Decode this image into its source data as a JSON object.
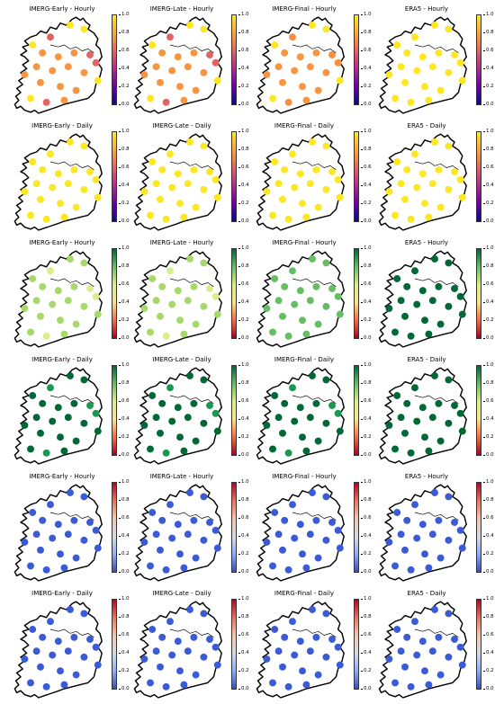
{
  "colors": {
    "outline": "#000000",
    "water": "#ffffff"
  },
  "colorbars": {
    "plasma": [
      "#fde725",
      "#fca636",
      "#e16462",
      "#b12a90",
      "#6a00a8",
      "#0d0887"
    ],
    "redyellowgreen": [
      "#006837",
      "#66bd63",
      "#d9ef8b",
      "#fee08b",
      "#f46d43",
      "#a50026"
    ],
    "coolwarm": [
      "#b40426",
      "#e7745b",
      "#f5c4ac",
      "#d5dbe5",
      "#8caff9",
      "#3b4cc0"
    ]
  },
  "colorbar_ticks": [
    "1.0",
    "0.8",
    "0.6",
    "0.4",
    "0.2",
    "0.0"
  ],
  "rows": [
    {
      "cmap": "plasma",
      "panels": [
        {
          "title": "IMERG-Early - Hourly",
          "dot_color": "#f89540",
          "accent_color": "#e16462",
          "yellow_edges": true
        },
        {
          "title": "IMERG-Late - Hourly",
          "dot_color": "#f89540",
          "accent_color": "#e16462",
          "yellow_edges": true
        },
        {
          "title": "IMERG-Final - Hourly",
          "dot_color": "#f89540",
          "accent_color": "#f68f44",
          "yellow_edges": true
        },
        {
          "title": "ERA5 - Hourly",
          "dot_color": "#fde725",
          "accent_color": "#fde725",
          "yellow_edges": false
        }
      ]
    },
    {
      "cmap": "plasma",
      "panels": [
        {
          "title": "IMERG-Early - Daily",
          "dot_color": "#fbe723",
          "accent_color": "#fbe723",
          "yellow_edges": false
        },
        {
          "title": "IMERG-Late - Daily",
          "dot_color": "#fbe723",
          "accent_color": "#fbe723",
          "yellow_edges": false
        },
        {
          "title": "IMERG-Final - Daily",
          "dot_color": "#fbe723",
          "accent_color": "#fbe723",
          "yellow_edges": false
        },
        {
          "title": "ERA5 - Daily",
          "dot_color": "#fde725",
          "accent_color": "#fde725",
          "yellow_edges": false
        }
      ]
    },
    {
      "cmap": "redyellowgreen",
      "panels": [
        {
          "title": "IMERG-Early - Hourly",
          "dot_color": "#a6d96a",
          "accent_color": "#d9ef8b",
          "yellow_edges": false
        },
        {
          "title": "IMERG-Late - Hourly",
          "dot_color": "#a6d96a",
          "accent_color": "#d9ef8b",
          "yellow_edges": false
        },
        {
          "title": "IMERG-Final - Hourly",
          "dot_color": "#66bd63",
          "accent_color": "#66bd63",
          "yellow_edges": false
        },
        {
          "title": "ERA5 - Hourly",
          "dot_color": "#006837",
          "accent_color": "#006837",
          "yellow_edges": false
        }
      ]
    },
    {
      "cmap": "redyellowgreen",
      "panels": [
        {
          "title": "IMERG-Early - Daily",
          "dot_color": "#006837",
          "accent_color": "#1a9850",
          "yellow_edges": false
        },
        {
          "title": "IMERG-Late - Daily",
          "dot_color": "#006837",
          "accent_color": "#1a9850",
          "yellow_edges": false
        },
        {
          "title": "IMERG-Final - Daily",
          "dot_color": "#006837",
          "accent_color": "#1a9850",
          "yellow_edges": false
        },
        {
          "title": "ERA5 - Daily",
          "dot_color": "#006837",
          "accent_color": "#006837",
          "yellow_edges": false
        }
      ]
    },
    {
      "cmap": "coolwarm",
      "panels": [
        {
          "title": "IMERG-Early - Hourly",
          "dot_color": "#3b5bd6",
          "accent_color": "#3b5bd6",
          "yellow_edges": false
        },
        {
          "title": "IMERG-Late - Hourly",
          "dot_color": "#3b5bd6",
          "accent_color": "#3b5bd6",
          "yellow_edges": false
        },
        {
          "title": "IMERG-Final - Hourly",
          "dot_color": "#3b5bd6",
          "accent_color": "#3b5bd6",
          "yellow_edges": false
        },
        {
          "title": "ERA5 - Hourly",
          "dot_color": "#3b5bd6",
          "accent_color": "#3b5bd6",
          "yellow_edges": false
        }
      ]
    },
    {
      "cmap": "coolwarm",
      "panels": [
        {
          "title": "IMERG-Early - Daily",
          "dot_color": "#3b5bd6",
          "accent_color": "#3b5bd6",
          "yellow_edges": false
        },
        {
          "title": "IMERG-Late - Daily",
          "dot_color": "#3b5bd6",
          "accent_color": "#3b5bd6",
          "yellow_edges": false
        },
        {
          "title": "IMERG-Final - Daily",
          "dot_color": "#3b5bd6",
          "accent_color": "#3b5bd6",
          "yellow_edges": false
        },
        {
          "title": "ERA5 - Daily",
          "dot_color": "#3b5bd6",
          "accent_color": "#3b5bd6",
          "yellow_edges": false
        }
      ]
    }
  ]
}
